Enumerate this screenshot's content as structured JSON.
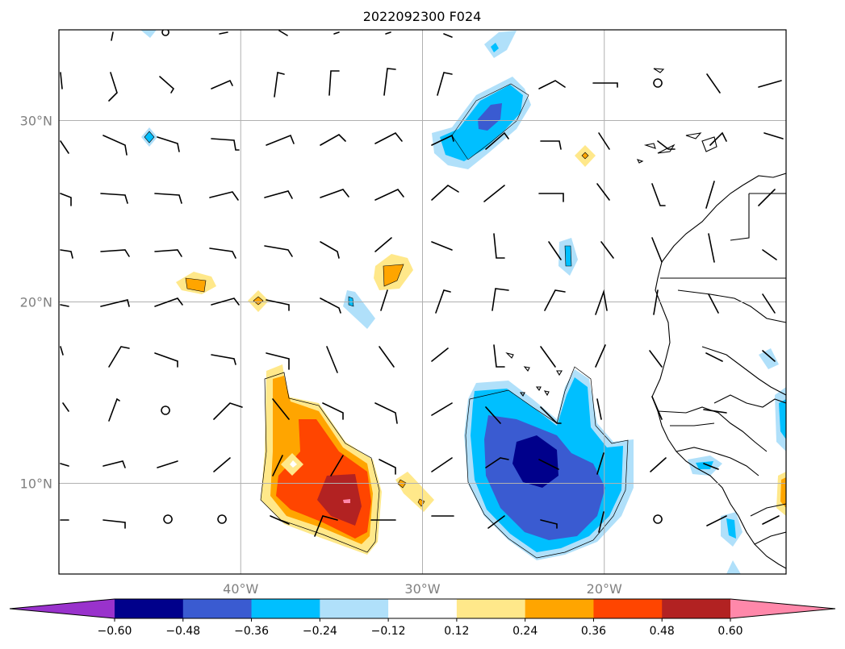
{
  "title": "2022092300 F024",
  "map": {
    "lon_range": [
      -50,
      -10
    ],
    "lat_range": [
      5,
      35
    ],
    "lon_ticks": [
      {
        "value": -40,
        "label": "40°W"
      },
      {
        "value": -30,
        "label": "30°W"
      },
      {
        "value": -20,
        "label": "20°W"
      }
    ],
    "lat_ticks": [
      {
        "value": 30,
        "label": "30°N"
      },
      {
        "value": 20,
        "label": "20°N"
      },
      {
        "value": 10,
        "label": "10°N"
      }
    ],
    "grid": true
  },
  "colorbar": {
    "orientation": "horizontal",
    "extend": "both",
    "levels": [
      "−0.60",
      "−0.48",
      "−0.36",
      "−0.24",
      "−0.12",
      "0.12",
      "0.24",
      "0.36",
      "0.48",
      "0.60"
    ],
    "colors": [
      "#9932cc",
      "#00008b",
      "#3a5bd1",
      "#00bfff",
      "#b0e0fa",
      "#ffffff",
      "#ffe88a",
      "#ffa500",
      "#ff4500",
      "#b22222",
      "#ff88aa"
    ]
  }
}
